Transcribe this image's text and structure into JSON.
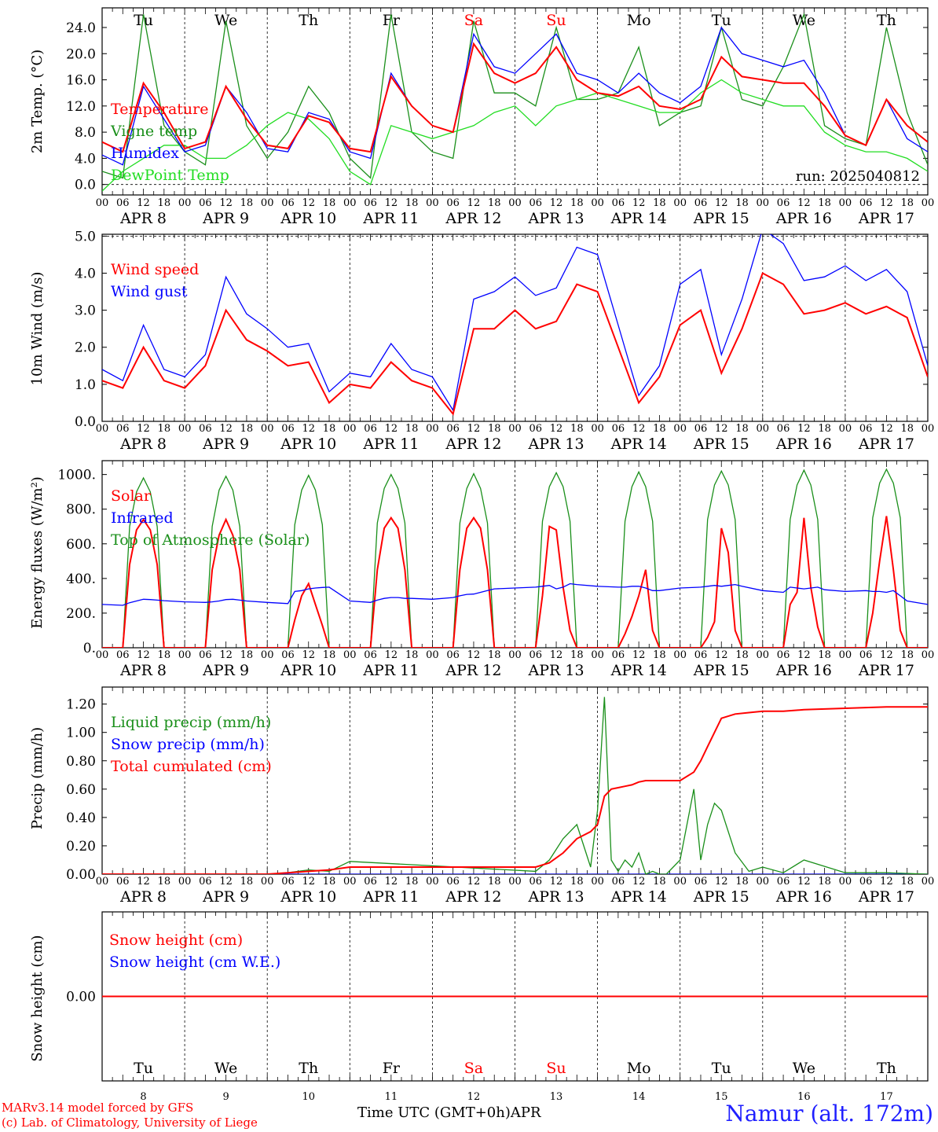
{
  "colors": {
    "red": "#ff0000",
    "green": "#1a8f1a",
    "blue": "#0000ff",
    "lightgreen": "#22dd22",
    "black": "#000000"
  },
  "chart_data": [
    {
      "id": "temp",
      "type": "line",
      "ylabel": "2m Temp. (°C)",
      "ylim": [
        -1.6,
        27
      ],
      "yticks": [
        "0.0",
        "4.0",
        "8.0",
        "12.0",
        "16.0",
        "20.0",
        "24.0"
      ],
      "refline": 0,
      "legend": [
        "Temperature",
        "Vigne temp",
        "Humidex",
        "DewPoint Temp"
      ],
      "note": "run: 2025040812",
      "x_hours": [
        0,
        6,
        12,
        18,
        24,
        30,
        36,
        42,
        48,
        54,
        60,
        66,
        72,
        78,
        84,
        90,
        96,
        102,
        108,
        114,
        120,
        126,
        132,
        138,
        144,
        150,
        156,
        162,
        168,
        174,
        180,
        186,
        192,
        198,
        204,
        210,
        216,
        222,
        228,
        234,
        240
      ],
      "series": [
        {
          "name": "Vigne temp",
          "color": "green",
          "values": [
            2,
            1,
            26,
            9,
            5,
            3,
            25,
            9,
            4,
            8,
            15,
            11,
            4,
            1,
            26,
            8,
            5,
            4,
            25,
            14,
            14,
            12,
            24,
            13,
            13,
            14,
            21,
            9,
            11,
            12,
            24,
            13,
            12,
            18,
            26,
            9,
            7,
            6,
            24,
            11,
            3
          ]
        },
        {
          "name": "DewPoint Temp",
          "color": "lightgreen",
          "values": [
            -1,
            2,
            4,
            6,
            6,
            4,
            4,
            6,
            9,
            11,
            10,
            7,
            2,
            0,
            9,
            8,
            7,
            8,
            9,
            11,
            12,
            9,
            12,
            13,
            14,
            13,
            12,
            11,
            11,
            14,
            16,
            14,
            13,
            12,
            12,
            8,
            6,
            5,
            5,
            4,
            2
          ]
        },
        {
          "name": "Humidex",
          "color": "blue",
          "values": [
            4.5,
            3,
            15,
            10,
            5,
            6,
            15,
            11,
            5.5,
            5,
            11,
            10,
            5,
            4,
            17,
            12,
            9,
            8,
            23,
            18,
            17,
            20,
            23,
            17,
            16,
            14,
            17,
            14,
            12.5,
            15,
            24,
            20,
            19,
            18,
            19,
            14,
            7.5,
            6,
            13,
            7,
            5
          ]
        },
        {
          "name": "Temperature",
          "color": "red",
          "values": [
            6.5,
            5,
            15.5,
            11,
            5.5,
            6.5,
            15,
            10,
            6,
            5.5,
            10.5,
            9.5,
            5.5,
            5,
            16.5,
            12,
            9,
            8,
            21.5,
            17,
            15.5,
            17,
            21,
            16,
            14,
            13.5,
            15,
            12,
            11.5,
            13,
            19.5,
            16.5,
            16,
            15.5,
            15.5,
            12,
            7.5,
            6,
            13,
            9,
            6.5
          ]
        }
      ]
    },
    {
      "id": "wind",
      "type": "line",
      "ylabel": "10m Wind (m/s)",
      "ylim": [
        0,
        5.05
      ],
      "yticks": [
        "0.0",
        "1.0",
        "2.0",
        "3.0",
        "4.0",
        "5.0"
      ],
      "refline": 5,
      "legend": [
        "Wind speed",
        "Wind gust"
      ],
      "x_hours": [
        0,
        6,
        12,
        18,
        24,
        30,
        36,
        42,
        48,
        54,
        60,
        66,
        72,
        78,
        84,
        90,
        96,
        102,
        108,
        114,
        120,
        126,
        132,
        138,
        144,
        150,
        156,
        162,
        168,
        174,
        180,
        186,
        192,
        198,
        204,
        210,
        216,
        222,
        228,
        234,
        240
      ],
      "series": [
        {
          "name": "Wind gust",
          "color": "blue",
          "values": [
            1.4,
            1.1,
            2.6,
            1.4,
            1.2,
            1.8,
            3.9,
            2.9,
            2.5,
            2.0,
            2.1,
            0.8,
            1.3,
            1.2,
            2.1,
            1.4,
            1.2,
            0.3,
            3.3,
            3.5,
            3.9,
            3.4,
            3.6,
            4.7,
            4.5,
            2.6,
            0.7,
            1.5,
            3.7,
            4.1,
            1.8,
            3.3,
            5.2,
            4.8,
            3.8,
            3.9,
            4.2,
            3.8,
            4.1,
            3.5,
            1.5
          ]
        },
        {
          "name": "Wind speed",
          "color": "red",
          "values": [
            1.1,
            0.9,
            2.0,
            1.1,
            0.9,
            1.5,
            3.0,
            2.2,
            1.9,
            1.5,
            1.6,
            0.5,
            1.0,
            0.9,
            1.6,
            1.1,
            0.9,
            0.2,
            2.5,
            2.5,
            3.0,
            2.5,
            2.7,
            3.7,
            3.5,
            2.0,
            0.5,
            1.2,
            2.6,
            3.0,
            1.3,
            2.5,
            4.0,
            3.7,
            2.9,
            3.0,
            3.2,
            2.9,
            3.1,
            2.8,
            1.2
          ]
        }
      ]
    },
    {
      "id": "energy",
      "type": "line",
      "ylabel": "Energy fluxes (W/m²)",
      "ylim": [
        0,
        1080
      ],
      "yticks": [
        "0.",
        "200.",
        "400.",
        "600.",
        "800.",
        "1000."
      ],
      "legend": [
        "Solar",
        "Infrared",
        "Top of Atmosphere (Solar)"
      ],
      "x_hours": [
        0,
        6,
        8,
        10,
        12,
        14,
        16,
        18,
        24,
        30,
        32,
        34,
        36,
        38,
        40,
        42,
        48,
        54,
        56,
        58,
        60,
        62,
        64,
        66,
        72,
        78,
        80,
        82,
        84,
        86,
        88,
        90,
        96,
        102,
        104,
        106,
        108,
        110,
        112,
        114,
        120,
        126,
        128,
        130,
        132,
        134,
        136,
        138,
        144,
        150,
        152,
        154,
        156,
        158,
        160,
        162,
        168,
        174,
        176,
        178,
        180,
        182,
        184,
        186,
        192,
        198,
        200,
        202,
        204,
        206,
        208,
        210,
        216,
        222,
        224,
        226,
        228,
        230,
        232,
        234,
        240
      ],
      "series": [
        {
          "name": "Top of Atmosphere (Solar)",
          "color": "green",
          "values": [
            0,
            0,
            700,
            900,
            980,
            900,
            700,
            0,
            0,
            0,
            700,
            910,
            990,
            910,
            700,
            0,
            0,
            0,
            710,
            910,
            995,
            910,
            710,
            0,
            0,
            0,
            720,
            920,
            1000,
            920,
            720,
            0,
            0,
            0,
            720,
            920,
            1005,
            920,
            720,
            0,
            0,
            0,
            730,
            930,
            1010,
            930,
            730,
            0,
            0,
            0,
            730,
            930,
            1015,
            930,
            730,
            0,
            0,
            0,
            740,
            940,
            1020,
            940,
            740,
            0,
            0,
            0,
            740,
            940,
            1025,
            940,
            740,
            0,
            0,
            0,
            750,
            950,
            1030,
            950,
            750,
            0,
            0
          ]
        },
        {
          "name": "Solar",
          "color": "red",
          "values": [
            0,
            0,
            480,
            680,
            740,
            680,
            480,
            0,
            0,
            0,
            450,
            650,
            740,
            650,
            450,
            0,
            0,
            0,
            160,
            300,
            370,
            250,
            130,
            0,
            0,
            0,
            450,
            690,
            750,
            690,
            450,
            0,
            0,
            0,
            450,
            690,
            750,
            690,
            450,
            0,
            0,
            0,
            300,
            700,
            680,
            350,
            100,
            0,
            0,
            0,
            80,
            180,
            300,
            450,
            100,
            0,
            0,
            0,
            60,
            150,
            690,
            550,
            100,
            0,
            0,
            0,
            250,
            320,
            750,
            350,
            120,
            0,
            0,
            0,
            200,
            500,
            760,
            450,
            100,
            0,
            0
          ]
        },
        {
          "name": "Infrared",
          "color": "blue",
          "values": [
            250,
            245,
            260,
            270,
            280,
            278,
            275,
            272,
            265,
            262,
            265,
            270,
            278,
            280,
            275,
            270,
            262,
            255,
            325,
            330,
            340,
            345,
            348,
            350,
            270,
            262,
            275,
            285,
            290,
            290,
            285,
            285,
            280,
            290,
            300,
            308,
            310,
            320,
            330,
            340,
            345,
            350,
            355,
            360,
            340,
            350,
            370,
            365,
            355,
            350,
            350,
            355,
            355,
            345,
            330,
            330,
            345,
            350,
            355,
            360,
            355,
            360,
            365,
            355,
            330,
            320,
            350,
            345,
            340,
            345,
            350,
            335,
            325,
            330,
            325,
            325,
            320,
            330,
            300,
            270,
            250
          ]
        }
      ]
    },
    {
      "id": "precip",
      "type": "line",
      "ylabel": "Precip (mm/h)",
      "ylim": [
        0,
        1.32
      ],
      "yticks": [
        "0.00",
        "0.20",
        "0.40",
        "0.60",
        "0.80",
        "1.00",
        "1.20"
      ],
      "legend": [
        "Liquid precip (mm/h)",
        "Snow precip (mm/h)",
        "Total cumulated (cm)"
      ],
      "x_hours": [
        0,
        48,
        54,
        60,
        66,
        72,
        126,
        130,
        134,
        138,
        142,
        144,
        146,
        148,
        150,
        152,
        154,
        156,
        158,
        160,
        162,
        164,
        168,
        172,
        174,
        176,
        178,
        180,
        184,
        188,
        192,
        198,
        204,
        216,
        228,
        240
      ],
      "series": [
        {
          "name": "Snow precip (mm/h)",
          "color": "blue",
          "values": [
            0,
            0,
            0,
            0,
            0,
            0,
            0,
            0,
            0,
            0,
            0,
            0,
            0,
            0,
            0,
            0,
            0,
            0,
            0,
            0,
            0,
            0,
            0,
            0,
            0,
            0,
            0,
            0,
            0,
            0,
            0,
            0,
            0,
            0,
            0,
            0
          ]
        },
        {
          "name": "Liquid precip (mm/h)",
          "color": "green",
          "values": [
            0,
            0,
            0.01,
            0.03,
            0.02,
            0.09,
            0.02,
            0.1,
            0.25,
            0.35,
            0.05,
            0.45,
            1.25,
            0.1,
            0.02,
            0.1,
            0.05,
            0.15,
            0,
            0.02,
            0,
            0,
            0.1,
            0.6,
            0.1,
            0.35,
            0.5,
            0.45,
            0.15,
            0.02,
            0.05,
            0.01,
            0.1,
            0.01,
            0.01,
            0
          ]
        },
        {
          "name": "Total cumulated (cm)",
          "color": "red",
          "values": [
            0,
            0,
            0.01,
            0.02,
            0.03,
            0.05,
            0.05,
            0.08,
            0.15,
            0.25,
            0.3,
            0.35,
            0.55,
            0.6,
            0.61,
            0.62,
            0.63,
            0.65,
            0.66,
            0.66,
            0.66,
            0.66,
            0.66,
            0.72,
            0.8,
            0.9,
            1.0,
            1.1,
            1.13,
            1.14,
            1.15,
            1.15,
            1.16,
            1.17,
            1.18,
            1.18
          ]
        }
      ]
    },
    {
      "id": "snow",
      "type": "line",
      "ylabel": "Snow height (cm)",
      "ylim": [
        -1,
        1
      ],
      "yticks": [
        "0.00"
      ],
      "legend": [
        "Snow height (cm)",
        "Snow height (cm W.E.)"
      ],
      "x_hours": [
        0,
        240
      ],
      "series": [
        {
          "name": "Snow height (cm W.E.)",
          "color": "blue",
          "values": [
            0,
            0
          ]
        },
        {
          "name": "Snow height (cm)",
          "color": "red",
          "values": [
            0,
            0
          ]
        }
      ]
    }
  ],
  "x_axis": {
    "hour_labels": [
      "00",
      "06",
      "12",
      "18"
    ],
    "date_labels": [
      "APR  8",
      "APR  9",
      "APR 10",
      "APR 11",
      "APR 12",
      "APR 13",
      "APR 14",
      "APR 15",
      "APR 16",
      "APR 17"
    ],
    "day_names": [
      "Tu",
      "We",
      "Th",
      "Fr",
      "Sa",
      "Su",
      "Mo",
      "Tu",
      "We",
      "Th"
    ],
    "weekend": [
      false,
      false,
      false,
      false,
      true,
      true,
      false,
      false,
      false,
      false
    ],
    "day_numbers": [
      "8",
      "9",
      "10",
      "11",
      "12",
      "13",
      "14",
      "15",
      "16",
      "17"
    ]
  },
  "footer": {
    "credit_line1": "MARv3.14 model forced by GFS",
    "credit_line2": "(c) Lab. of Climatology, University of Liege",
    "axis_title": "Time UTC (GMT+0h)APR",
    "station": "Namur (alt. 172m)"
  }
}
